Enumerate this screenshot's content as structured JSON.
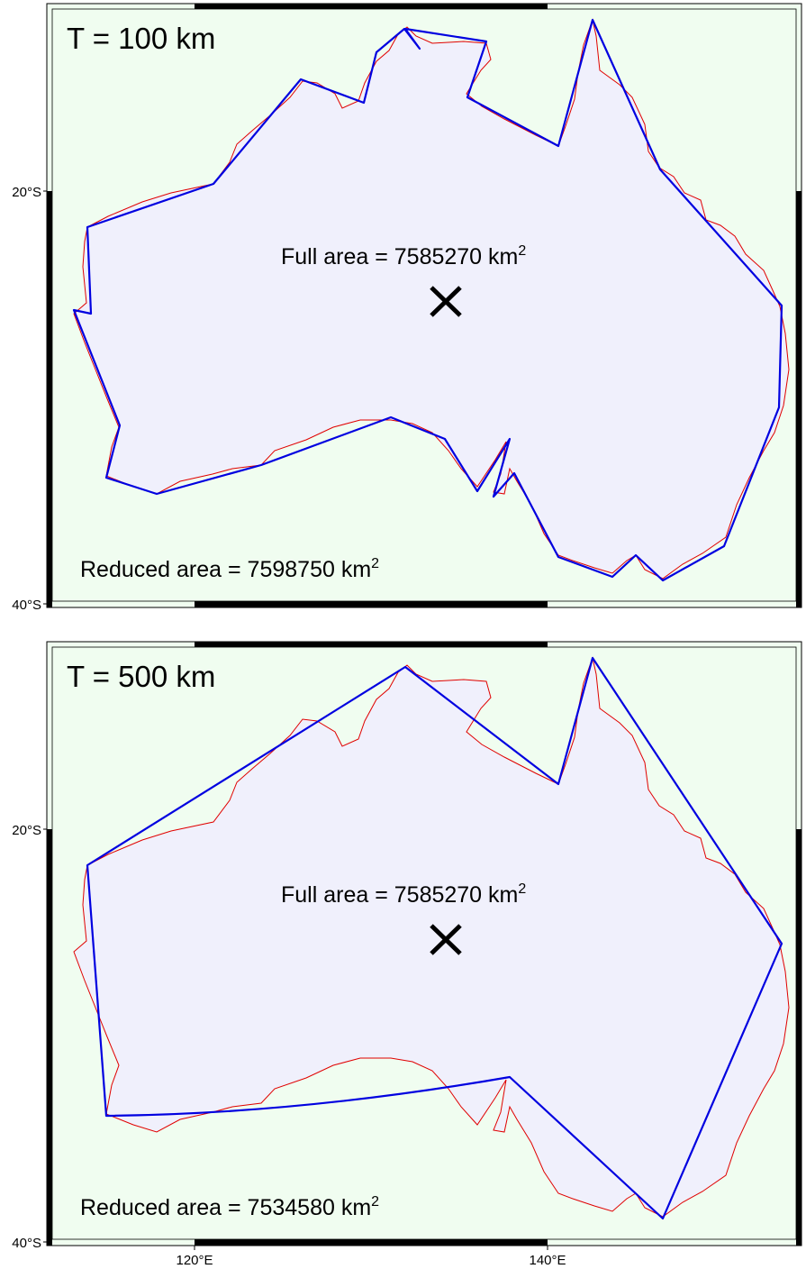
{
  "panels": [
    {
      "title": "T = 100 km",
      "full_area": "Full area = 7585270 km",
      "full_area_sup": "2",
      "reduced_area": "Reduced area = 7598750 km",
      "reduced_area_sup": "2"
    },
    {
      "title": "T = 500 km",
      "full_area": "Full area = 7585270 km",
      "full_area_sup": "2",
      "reduced_area": "Reduced area = 7534580 km",
      "reduced_area_sup": "2"
    }
  ],
  "axes": {
    "lat_labels": [
      "20°S",
      "40°S"
    ],
    "lon_labels": [
      "120°E",
      "140°E"
    ]
  },
  "colors": {
    "map_background": "#f0fdf0",
    "land_fill": "#f0f0fc",
    "coastline": "#e00000",
    "simplified_polygon": "#0000e0",
    "centroid_marker": "#000000"
  }
}
